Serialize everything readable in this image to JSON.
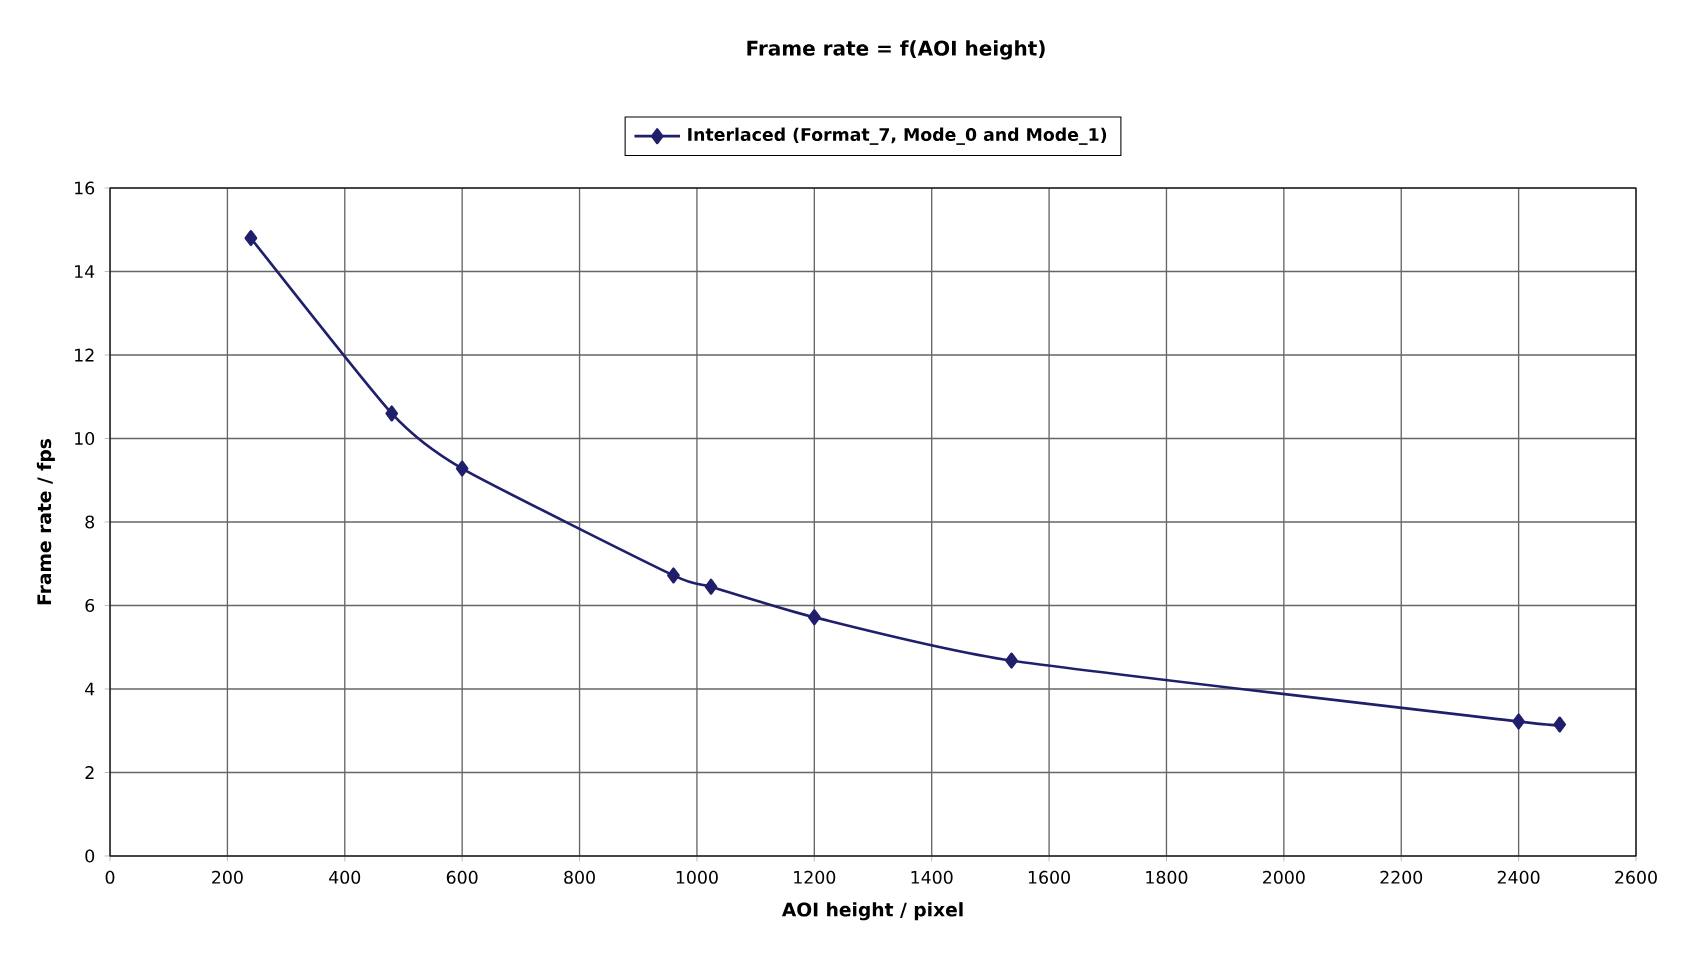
{
  "chart_data": {
    "type": "line",
    "title": "Frame rate = f(AOI height)",
    "xlabel": "AOI height / pixel",
    "ylabel": "Frame rate / fps",
    "x": [
      240,
      480,
      600,
      960,
      1024,
      1200,
      1536,
      2400,
      2470
    ],
    "series": [
      {
        "name": "Interlaced (Format_7, Mode_0 and Mode_1)",
        "color": "#1f1f6b",
        "values": [
          14.8,
          10.6,
          9.28,
          6.72,
          6.45,
          5.72,
          4.68,
          3.22,
          3.15
        ]
      }
    ],
    "xlim": [
      0,
      2600
    ],
    "xticks": [
      0,
      200,
      400,
      600,
      800,
      1000,
      1200,
      1400,
      1600,
      1800,
      2000,
      2200,
      2400,
      2600
    ],
    "ylim": [
      0,
      16
    ],
    "yticks": [
      0,
      2,
      4,
      6,
      8,
      10,
      12,
      14,
      16
    ],
    "grid": true,
    "legend": "top",
    "marker": "diamond",
    "line_style": "solid"
  }
}
